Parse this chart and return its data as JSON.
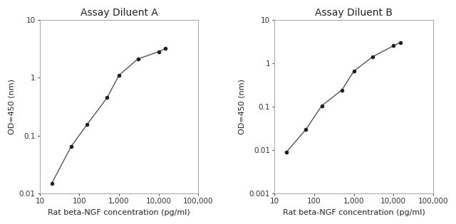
{
  "title_A": "Assay Diluent A",
  "title_B": "Assay Diluent B",
  "xlabel": "Rat beta-NGF concentration (pg/ml)",
  "ylabel": "OD=450 (nm)",
  "x_A": [
    20,
    62,
    156,
    500,
    1000,
    3000,
    10000,
    15000
  ],
  "y_A": [
    0.015,
    0.065,
    0.155,
    0.45,
    1.1,
    2.1,
    2.8,
    3.2
  ],
  "x_B": [
    20,
    62,
    156,
    500,
    1000,
    3000,
    10000,
    15000
  ],
  "y_B": [
    0.009,
    0.03,
    0.105,
    0.24,
    0.65,
    1.4,
    2.5,
    3.0
  ],
  "xlim": [
    10,
    100000
  ],
  "ylim_A": [
    0.01,
    10
  ],
  "ylim_B": [
    0.001,
    10
  ],
  "bg_color": "#ffffff",
  "line_color": "#555555",
  "marker_color": "#1a1a1a",
  "title_fontsize": 10,
  "label_fontsize": 8,
  "tick_fontsize": 7.5,
  "xtick_labels": [
    "10",
    "100",
    "1,000",
    "10,000",
    "100,000"
  ],
  "xtick_vals": [
    10,
    100,
    1000,
    10000,
    100000
  ],
  "yticks_A_vals": [
    0.01,
    0.1,
    1,
    10
  ],
  "yticks_A_labels": [
    "0.01",
    "0.1",
    "1",
    "10"
  ],
  "yticks_B_vals": [
    0.001,
    0.01,
    0.1,
    1,
    10
  ],
  "yticks_B_labels": [
    "0.001",
    "0.01",
    "0.1",
    "1",
    "10"
  ],
  "spine_color": "#aaaaaa",
  "spine_linewidth": 0.8
}
